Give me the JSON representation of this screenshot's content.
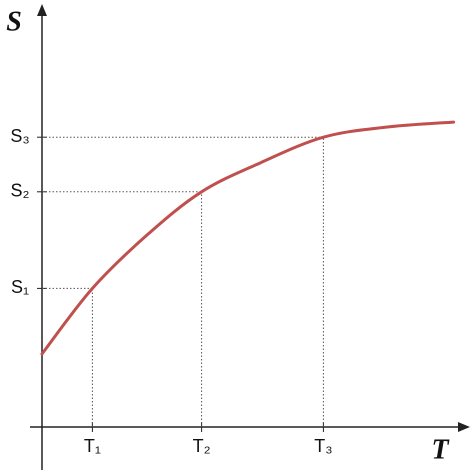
{
  "chart_data": {
    "type": "line",
    "x_label": "T",
    "y_label": "S",
    "x": [
      0,
      12,
      25,
      38,
      52,
      67,
      82,
      98
    ],
    "values": [
      17.4,
      33,
      45.7,
      56,
      62.9,
      69,
      71.4,
      72.6
    ],
    "color": "#c0504d",
    "xlim": [
      0,
      100
    ],
    "ylim": [
      0,
      100
    ],
    "xticks": [
      {
        "value": 12,
        "label": "T₁"
      },
      {
        "value": 38,
        "label": "T₂"
      },
      {
        "value": 67,
        "label": "T₃"
      }
    ],
    "yticks": [
      {
        "value": 33,
        "label": "S₁"
      },
      {
        "value": 56,
        "label": "S₂"
      },
      {
        "value": 69,
        "label": "S₃"
      }
    ]
  }
}
